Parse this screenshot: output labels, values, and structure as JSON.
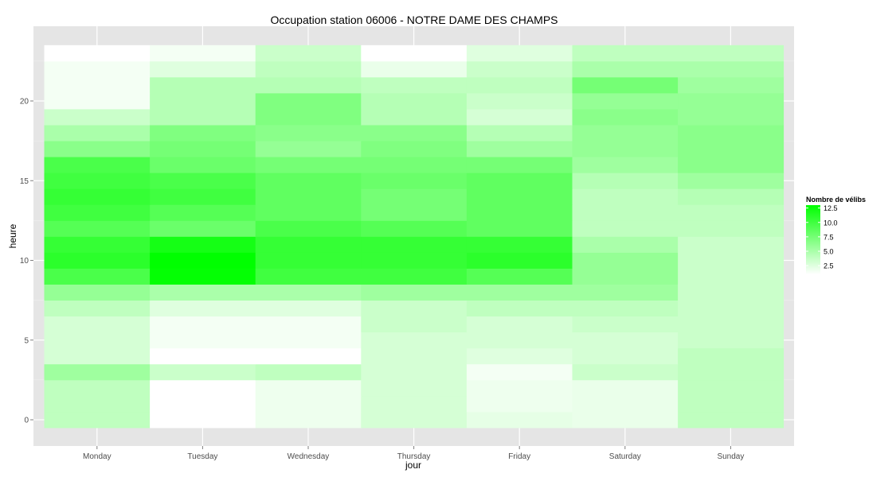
{
  "chart_data": {
    "type": "heatmap",
    "title": "Occupation station 06006 - NOTRE DAME DES CHAMPS",
    "xlabel": "jour",
    "ylabel": "heure",
    "x_categories": [
      "Monday",
      "Tuesday",
      "Wednesday",
      "Thursday",
      "Friday",
      "Saturday",
      "Sunday"
    ],
    "y_hours": [
      0,
      1,
      2,
      3,
      4,
      5,
      6,
      7,
      8,
      9,
      10,
      11,
      12,
      13,
      14,
      15,
      16,
      17,
      18,
      19,
      20,
      21,
      22,
      23
    ],
    "y_ticks": [
      0,
      5,
      10,
      15,
      20
    ],
    "ylim": [
      -0.5,
      23.5
    ],
    "legend": {
      "title": "Nombre de vélibs",
      "position": "right",
      "ticks": [
        2.5,
        5.0,
        7.5,
        10.0,
        12.5
      ],
      "tick_labels": [
        "2.5",
        "5.0",
        "7.5",
        "10.0",
        "12.5"
      ],
      "min": 1.0,
      "max": 13.0,
      "low_color": "#ffffff",
      "high_color": "#00ff00"
    },
    "values": [
      [
        4.0,
        1.0,
        1.8,
        3.0,
        2.2,
        2.0,
        4.0
      ],
      [
        4.0,
        1.0,
        1.8,
        3.0,
        1.8,
        2.0,
        4.0
      ],
      [
        4.0,
        0.7,
        1.8,
        3.0,
        1.8,
        2.0,
        4.0
      ],
      [
        5.5,
        3.5,
        4.0,
        3.0,
        1.5,
        3.5,
        4.0
      ],
      [
        3.0,
        0.2,
        1.0,
        3.0,
        2.5,
        3.0,
        4.0
      ],
      [
        3.0,
        1.5,
        1.5,
        3.0,
        3.0,
        3.0,
        3.5
      ],
      [
        3.0,
        1.5,
        1.5,
        3.5,
        3.0,
        3.5,
        3.5
      ],
      [
        4.0,
        2.5,
        2.5,
        3.5,
        4.0,
        4.0,
        3.5
      ],
      [
        6.0,
        5.0,
        5.0,
        5.5,
        5.5,
        5.5,
        3.5
      ],
      [
        9.5,
        12.8,
        10.0,
        10.0,
        9.0,
        6.0,
        3.5
      ],
      [
        11.0,
        13.0,
        10.5,
        10.5,
        11.0,
        6.0,
        3.5
      ],
      [
        10.5,
        12.0,
        10.5,
        10.5,
        10.5,
        5.0,
        3.5
      ],
      [
        9.0,
        8.0,
        9.5,
        9.0,
        8.5,
        4.0,
        4.0
      ],
      [
        10.0,
        9.0,
        8.5,
        7.5,
        8.5,
        4.0,
        4.0
      ],
      [
        10.5,
        10.0,
        8.5,
        7.5,
        8.5,
        4.0,
        4.5
      ],
      [
        10.0,
        9.5,
        8.5,
        8.0,
        8.5,
        4.5,
        5.5
      ],
      [
        9.5,
        8.0,
        7.5,
        7.5,
        7.5,
        5.5,
        6.5
      ],
      [
        6.5,
        7.5,
        6.0,
        7.0,
        5.5,
        6.0,
        6.5
      ],
      [
        5.0,
        7.0,
        6.5,
        6.5,
        4.5,
        6.0,
        6.5
      ],
      [
        3.5,
        4.5,
        7.0,
        4.5,
        3.0,
        6.5,
        6.0
      ],
      [
        1.5,
        4.5,
        7.0,
        4.5,
        3.5,
        6.0,
        6.0
      ],
      [
        1.5,
        4.5,
        4.5,
        4.0,
        4.0,
        7.5,
        5.5
      ],
      [
        1.5,
        2.5,
        4.0,
        2.0,
        3.5,
        5.0,
        5.0
      ],
      [
        0.5,
        1.5,
        3.5,
        0.7,
        2.5,
        4.0,
        4.0
      ]
    ]
  }
}
